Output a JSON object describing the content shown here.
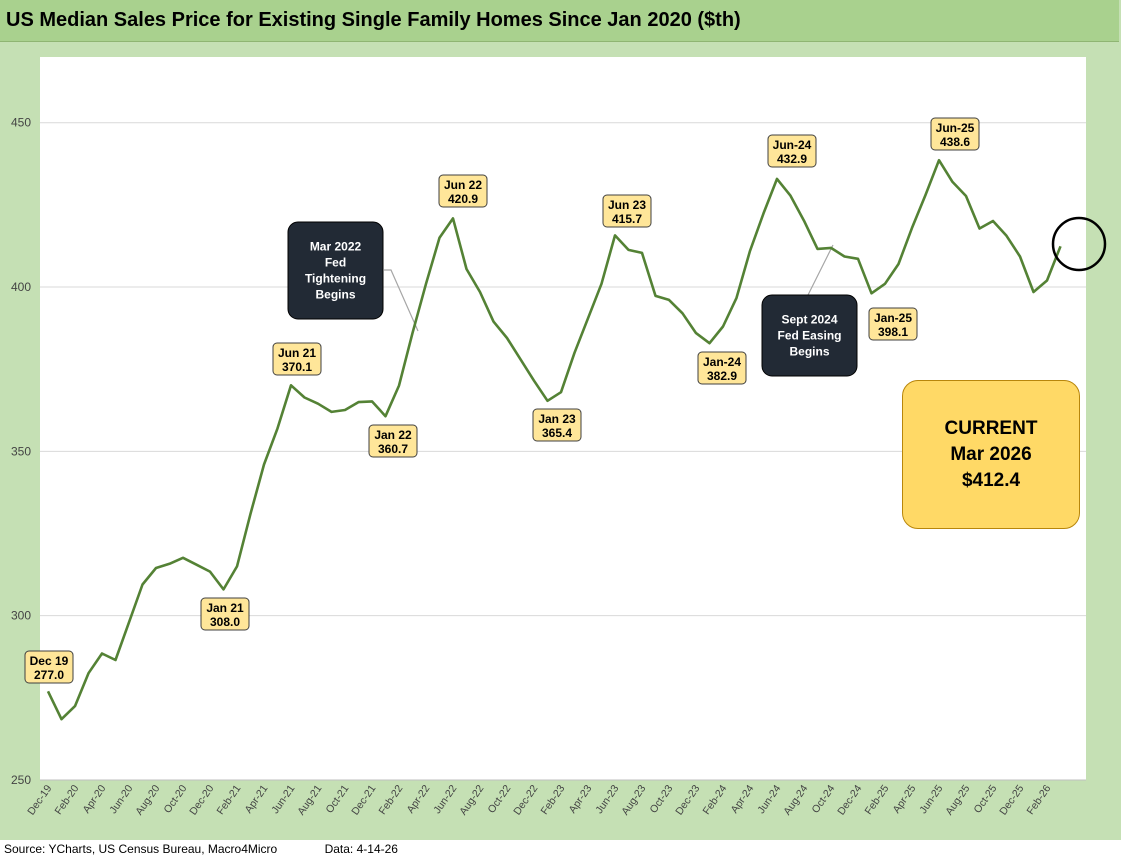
{
  "chart_data": {
    "type": "line",
    "title": "US Median Sales Price for Existing Single Family Homes Since Jan 2020 ($th)",
    "xlabel": "",
    "ylabel": "",
    "ylim": [
      250,
      470
    ],
    "yticks": [
      250,
      300,
      350,
      400,
      450
    ],
    "grid": true,
    "x_tick_labels": [
      "Dec-19",
      "Feb-20",
      "Apr-20",
      "Jun-20",
      "Aug-20",
      "Oct-20",
      "Dec-20",
      "Feb-21",
      "Apr-21",
      "Jun-21",
      "Aug-21",
      "Oct-21",
      "Dec-21",
      "Feb-22",
      "Apr-22",
      "Jun-22",
      "Aug-22",
      "Oct-22",
      "Dec-22",
      "Feb-23",
      "Apr-23",
      "Jun-23",
      "Aug-23",
      "Oct-23",
      "Dec-23",
      "Feb-24",
      "Apr-24",
      "Jun-24",
      "Aug-24",
      "Oct-24",
      "Dec-24",
      "Feb-25",
      "Apr-25",
      "Jun-25",
      "Aug-25",
      "Oct-25",
      "Dec-25",
      "Feb-26"
    ],
    "series": [
      {
        "color": "#548235",
        "values": [
          277.0,
          268.5,
          272.5,
          282.5,
          288.5,
          286.5,
          298,
          309.5,
          314.5,
          315.8,
          317.6,
          315.5,
          313.4,
          308.0,
          315,
          331,
          346,
          357,
          370.1,
          366.4,
          364.5,
          362,
          362.6,
          365,
          365.2,
          360.7,
          370,
          386,
          401,
          415,
          420.9,
          405.5,
          398.5,
          389.5,
          384.5,
          378,
          371.5,
          365.4,
          368,
          380,
          390.5,
          401,
          415.7,
          411.3,
          410.4,
          397.3,
          396.1,
          392,
          386,
          382.9,
          388,
          396.7,
          411,
          422.4,
          432.9,
          427.8,
          420.2,
          411.6,
          411.9,
          409.3,
          408.6,
          398.1,
          401,
          407,
          418,
          428,
          438.6,
          432,
          427.7,
          417.8,
          420.1,
          415.6,
          409.3,
          398.5,
          402,
          412.4
        ]
      }
    ],
    "annotations": [
      {
        "label": "Dec 19",
        "value": "277.0"
      },
      {
        "label": "Jan 21",
        "value": "308.0"
      },
      {
        "label": "Jun 21",
        "value": "370.1"
      },
      {
        "label": "Jan 22",
        "value": "360.7"
      },
      {
        "label": "Jun 22",
        "value": "420.9"
      },
      {
        "label": "Jan 23",
        "value": "365.4"
      },
      {
        "label": "Jun 23",
        "value": "415.7"
      },
      {
        "label": "Jan-24",
        "value": "382.9"
      },
      {
        "label": "Jun-24",
        "value": "432.9"
      },
      {
        "label": "Jan-25",
        "value": "398.1"
      },
      {
        "label": "Jun-25",
        "value": "438.6"
      }
    ],
    "callouts": [
      {
        "lines": [
          "Mar 2022",
          "Fed",
          "Tightening",
          "Begins"
        ]
      },
      {
        "lines": [
          "Sept 2024",
          "Fed Easing",
          "Begins"
        ]
      }
    ],
    "current": {
      "line1": "CURRENT",
      "line2": "Mar 2026",
      "line3": "$412.4"
    }
  },
  "footer": {
    "source": "Source: YCharts, US Census Bureau, Macro4Micro",
    "data_date": "Data: 4-14-26"
  }
}
